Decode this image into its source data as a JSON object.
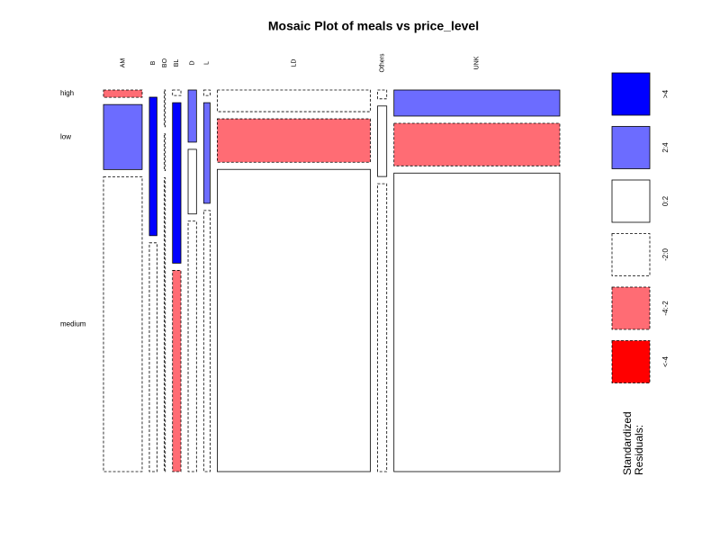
{
  "chart_data": {
    "type": "mosaic",
    "title": "Mosaic Plot of meals vs price_level",
    "x_categories": [
      "AM",
      "B",
      "BO",
      "BL",
      "D",
      "L",
      "LD",
      "Others",
      "UNK"
    ],
    "y_categories": [
      "high",
      "low",
      "medium"
    ],
    "column_shares": [
      9.7,
      1.9,
      0.3,
      2.1,
      2.1,
      1.6,
      38.4,
      2.3,
      41.6
    ],
    "tiles": [
      {
        "shares": [
          2.0,
          17.7,
          80.3
        ],
        "residuals": [
          -3,
          3,
          -1
        ]
      },
      {
        "shares": [
          0,
          37.7,
          62.3
        ],
        "residuals": [
          -1,
          5,
          -1
        ]
      },
      {
        "shares": [
          10,
          10,
          80
        ],
        "residuals": [
          -1,
          -1,
          -1
        ]
      },
      {
        "shares": [
          1.5,
          43.7,
          54.8
        ],
        "residuals": [
          -1,
          5,
          -3
        ]
      },
      {
        "shares": [
          14.2,
          17.6,
          68.2
        ],
        "residuals": [
          3,
          1,
          -1
        ]
      },
      {
        "shares": [
          1.5,
          27.4,
          71.1
        ],
        "residuals": [
          -1,
          3,
          -1
        ]
      },
      {
        "shares": [
          5.9,
          11.8,
          82.3
        ],
        "residuals": [
          -1,
          -3,
          1
        ]
      },
      {
        "shares": [
          2.4,
          19.2,
          78.4
        ],
        "residuals": [
          -1,
          1,
          -1
        ]
      },
      {
        "shares": [
          7.1,
          11.6,
          81.3
        ],
        "residuals": [
          3,
          -3,
          1
        ]
      }
    ],
    "legend": [
      {
        "label": ">4",
        "color": "#0000ff",
        "dashed": false,
        "min": 4,
        "max": null
      },
      {
        "label": "2:4",
        "color": "#6c6cff",
        "dashed": false,
        "min": 2,
        "max": 4
      },
      {
        "label": "0:2",
        "color": "#ffffff",
        "dashed": false,
        "min": 0,
        "max": 2
      },
      {
        "label": "-2:0",
        "color": "#ffffff",
        "dashed": true,
        "min": -2,
        "max": 0
      },
      {
        "label": "-4:-2",
        "color": "#ff6c74",
        "dashed": true,
        "min": -4,
        "max": -2
      },
      {
        "label": "<-4",
        "color": "#ff0000",
        "dashed": true,
        "min": null,
        "max": -4
      }
    ],
    "legend_title": [
      "Standardized",
      "Residuals:"
    ]
  }
}
